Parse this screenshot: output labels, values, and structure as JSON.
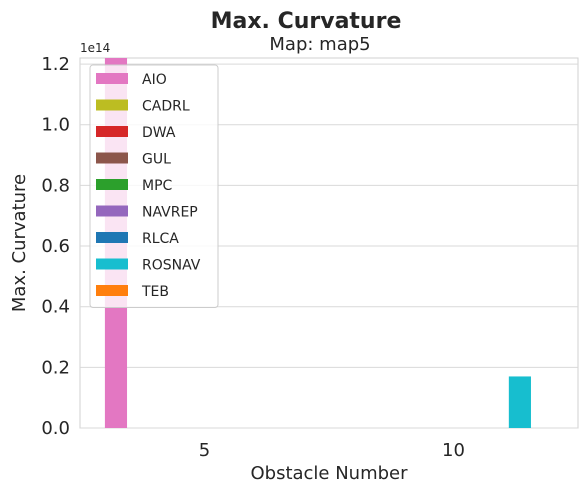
{
  "chart_data": {
    "type": "bar",
    "title": "Max. Curvature",
    "subtitle": "Map: map5",
    "xlabel": "Obstacle Number",
    "ylabel": "Max. Curvature",
    "y_offset_label": "1e14",
    "categories": [
      "5",
      "10"
    ],
    "ylim": [
      0,
      1.22
    ],
    "y_ticks": [
      0.0,
      0.2,
      0.4,
      0.6,
      0.8,
      1.0,
      1.2
    ],
    "y_tick_labels": [
      "0.0",
      "0.2",
      "0.4",
      "0.6",
      "0.8",
      "1.0",
      "1.2"
    ],
    "grid": "horizontal",
    "legend_location": "upper-left",
    "series": [
      {
        "name": "AIO",
        "color": "#e377c2",
        "values": [
          1.22,
          0
        ]
      },
      {
        "name": "CADRL",
        "color": "#bcbd22",
        "values": [
          0,
          0
        ]
      },
      {
        "name": "DWA",
        "color": "#d62728",
        "values": [
          0,
          0
        ]
      },
      {
        "name": "GUL",
        "color": "#8c564b",
        "values": [
          0,
          0
        ]
      },
      {
        "name": "MPC",
        "color": "#2ca02c",
        "values": [
          0,
          0
        ]
      },
      {
        "name": "NAVREP",
        "color": "#9467bd",
        "values": [
          0,
          0
        ]
      },
      {
        "name": "RLCA",
        "color": "#1f77b4",
        "values": [
          0,
          0
        ]
      },
      {
        "name": "ROSNAV",
        "color": "#17becf",
        "values": [
          0,
          0.17
        ]
      },
      {
        "name": "TEB",
        "color": "#ff7f0e",
        "values": [
          0,
          0
        ]
      }
    ]
  }
}
